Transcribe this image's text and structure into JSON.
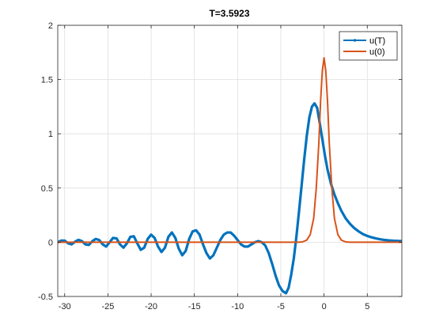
{
  "chart_data": {
    "type": "line",
    "title": "T=3.5923",
    "xlabel": "",
    "ylabel": "",
    "xlim": [
      -30.8,
      9
    ],
    "ylim": [
      -0.5,
      2
    ],
    "grid": true,
    "legend_position": "top-right",
    "x_ticks": [
      -30,
      -25,
      -20,
      -15,
      -10,
      -5,
      0,
      5
    ],
    "x_tick_labels": [
      "-30",
      "-25",
      "-20",
      "-15",
      "-10",
      "-5",
      "0",
      "5"
    ],
    "y_ticks": [
      -0.5,
      0,
      0.5,
      1,
      1.5,
      2
    ],
    "y_tick_labels": [
      "-0.5",
      "0",
      "0.5",
      "1",
      "1.5",
      "2"
    ],
    "series": [
      {
        "name": "u(T)",
        "color": "#0072BD",
        "marker": "dot",
        "points": [
          [
            -30.8,
            0.0
          ],
          [
            -30.4,
            0.015
          ],
          [
            -30.0,
            0.015
          ],
          [
            -29.6,
            -0.01
          ],
          [
            -29.2,
            -0.02
          ],
          [
            -28.8,
            0.005
          ],
          [
            -28.4,
            0.022
          ],
          [
            -28.0,
            0.01
          ],
          [
            -27.6,
            -0.02
          ],
          [
            -27.2,
            -0.025
          ],
          [
            -26.8,
            0.01
          ],
          [
            -26.4,
            0.03
          ],
          [
            -26.0,
            0.02
          ],
          [
            -25.6,
            -0.02
          ],
          [
            -25.2,
            -0.04
          ],
          [
            -24.8,
            0.0
          ],
          [
            -24.4,
            0.04
          ],
          [
            -24.0,
            0.035
          ],
          [
            -23.6,
            -0.02
          ],
          [
            -23.2,
            -0.05
          ],
          [
            -22.8,
            -0.01
          ],
          [
            -22.4,
            0.05
          ],
          [
            -22.0,
            0.055
          ],
          [
            -21.6,
            -0.01
          ],
          [
            -21.2,
            -0.07
          ],
          [
            -20.8,
            -0.05
          ],
          [
            -20.4,
            0.03
          ],
          [
            -20.0,
            0.07
          ],
          [
            -19.6,
            0.04
          ],
          [
            -19.2,
            -0.04
          ],
          [
            -18.8,
            -0.09
          ],
          [
            -18.4,
            -0.05
          ],
          [
            -18.0,
            0.05
          ],
          [
            -17.6,
            0.09
          ],
          [
            -17.2,
            0.04
          ],
          [
            -16.8,
            -0.06
          ],
          [
            -16.4,
            -0.12
          ],
          [
            -16.0,
            -0.08
          ],
          [
            -15.6,
            0.03
          ],
          [
            -15.2,
            0.1
          ],
          [
            -14.8,
            0.11
          ],
          [
            -14.4,
            0.07
          ],
          [
            -14.0,
            -0.02
          ],
          [
            -13.6,
            -0.1
          ],
          [
            -13.2,
            -0.15
          ],
          [
            -12.8,
            -0.12
          ],
          [
            -12.4,
            -0.05
          ],
          [
            -12.0,
            0.02
          ],
          [
            -11.6,
            0.07
          ],
          [
            -11.2,
            0.09
          ],
          [
            -10.8,
            0.09
          ],
          [
            -10.4,
            0.06
          ],
          [
            -10.0,
            0.02
          ],
          [
            -9.6,
            -0.02
          ],
          [
            -9.2,
            -0.04
          ],
          [
            -8.8,
            -0.04
          ],
          [
            -8.4,
            -0.02
          ],
          [
            -8.0,
            0.0
          ],
          [
            -7.6,
            0.01
          ],
          [
            -7.2,
            0.0
          ],
          [
            -6.8,
            -0.03
          ],
          [
            -6.4,
            -0.1
          ],
          [
            -6.0,
            -0.2
          ],
          [
            -5.6,
            -0.31
          ],
          [
            -5.2,
            -0.4
          ],
          [
            -4.8,
            -0.45
          ],
          [
            -4.4,
            -0.47
          ],
          [
            -4.1,
            -0.42
          ],
          [
            -3.8,
            -0.3
          ],
          [
            -3.5,
            -0.15
          ],
          [
            -3.2,
            0.05
          ],
          [
            -2.9,
            0.28
          ],
          [
            -2.6,
            0.52
          ],
          [
            -2.3,
            0.76
          ],
          [
            -2.0,
            0.98
          ],
          [
            -1.7,
            1.15
          ],
          [
            -1.4,
            1.25
          ],
          [
            -1.1,
            1.28
          ],
          [
            -0.8,
            1.24
          ],
          [
            -0.5,
            1.1
          ],
          [
            -0.2,
            0.95
          ],
          [
            0.1,
            0.8
          ],
          [
            0.4,
            0.67
          ],
          [
            0.8,
            0.54
          ],
          [
            1.2,
            0.44
          ],
          [
            1.6,
            0.36
          ],
          [
            2.0,
            0.29
          ],
          [
            2.5,
            0.22
          ],
          [
            3.0,
            0.17
          ],
          [
            3.5,
            0.13
          ],
          [
            4.0,
            0.1
          ],
          [
            4.5,
            0.075
          ],
          [
            5.0,
            0.058
          ],
          [
            5.5,
            0.045
          ],
          [
            6.0,
            0.035
          ],
          [
            6.5,
            0.027
          ],
          [
            7.0,
            0.021
          ],
          [
            7.5,
            0.017
          ],
          [
            8.0,
            0.014
          ],
          [
            8.5,
            0.012
          ],
          [
            9.0,
            0.01
          ]
        ]
      },
      {
        "name": "u(0)",
        "color": "#D95319",
        "marker": "none",
        "points": [
          [
            -30.8,
            0.0
          ],
          [
            -3.0,
            0.0
          ],
          [
            -2.5,
            0.003
          ],
          [
            -2.0,
            0.02
          ],
          [
            -1.6,
            0.07
          ],
          [
            -1.2,
            0.22
          ],
          [
            -0.9,
            0.5
          ],
          [
            -0.6,
            0.92
          ],
          [
            -0.4,
            1.3
          ],
          [
            -0.2,
            1.58
          ],
          [
            0.0,
            1.7
          ],
          [
            0.2,
            1.58
          ],
          [
            0.4,
            1.3
          ],
          [
            0.6,
            0.92
          ],
          [
            0.9,
            0.5
          ],
          [
            1.2,
            0.22
          ],
          [
            1.6,
            0.07
          ],
          [
            2.0,
            0.02
          ],
          [
            2.5,
            0.003
          ],
          [
            3.0,
            0.0
          ],
          [
            9.0,
            0.0
          ]
        ]
      }
    ]
  }
}
